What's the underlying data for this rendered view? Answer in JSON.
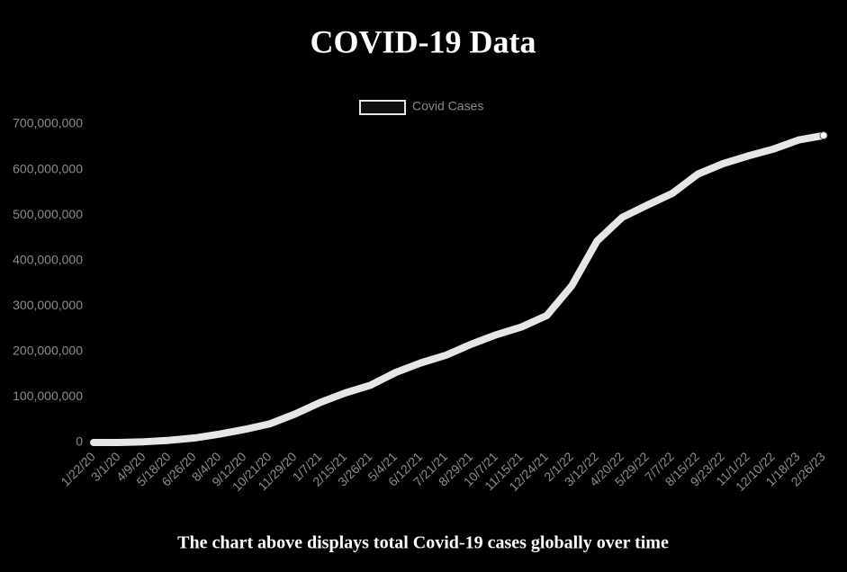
{
  "chart_data": {
    "type": "line",
    "title": "COVID-19 Data",
    "caption": "The chart above displays total Covid-19 cases globally over time",
    "categories": [
      "1/22/20",
      "3/1/20",
      "4/9/20",
      "5/18/20",
      "6/26/20",
      "8/4/20",
      "9/12/20",
      "10/21/20",
      "11/29/20",
      "1/7/21",
      "2/15/21",
      "3/26/21",
      "5/4/21",
      "6/12/21",
      "7/21/21",
      "8/29/21",
      "10/7/21",
      "11/15/21",
      "12/24/21",
      "2/1/22",
      "3/12/22",
      "4/20/22",
      "5/29/22",
      "7/7/22",
      "8/15/22",
      "9/23/22",
      "11/1/22",
      "12/10/22",
      "1/18/23",
      "2/26/23"
    ],
    "series": [
      {
        "name": "Covid Cases",
        "color": "#e6e6e6",
        "values": [
          557,
          88000,
          1600000,
          4800000,
          9800000,
          18500000,
          28700000,
          41000000,
          62600000,
          88000000,
          109000000,
          126000000,
          154000000,
          175000000,
          192000000,
          216000000,
          237000000,
          254000000,
          279000000,
          345000000,
          443000000,
          495000000,
          522000000,
          548000000,
          590000000,
          613000000,
          630000000,
          645000000,
          665000000,
          675000000
        ]
      }
    ],
    "ylim": [
      0,
      700000000
    ],
    "yticks": [
      0,
      {
        "value": 100000000,
        "label": "100,000,000"
      },
      {
        "value": 200000000,
        "label": "200,000,000"
      },
      {
        "value": 300000000,
        "label": "300,000,000"
      },
      {
        "value": 400000000,
        "label": "400,000,000"
      },
      {
        "value": 500000000,
        "label": "500,000,000"
      },
      {
        "value": 600000000,
        "label": "600,000,000"
      },
      {
        "value": 700000000,
        "label": "700,000,000"
      }
    ],
    "grid": false,
    "legend": "top"
  }
}
